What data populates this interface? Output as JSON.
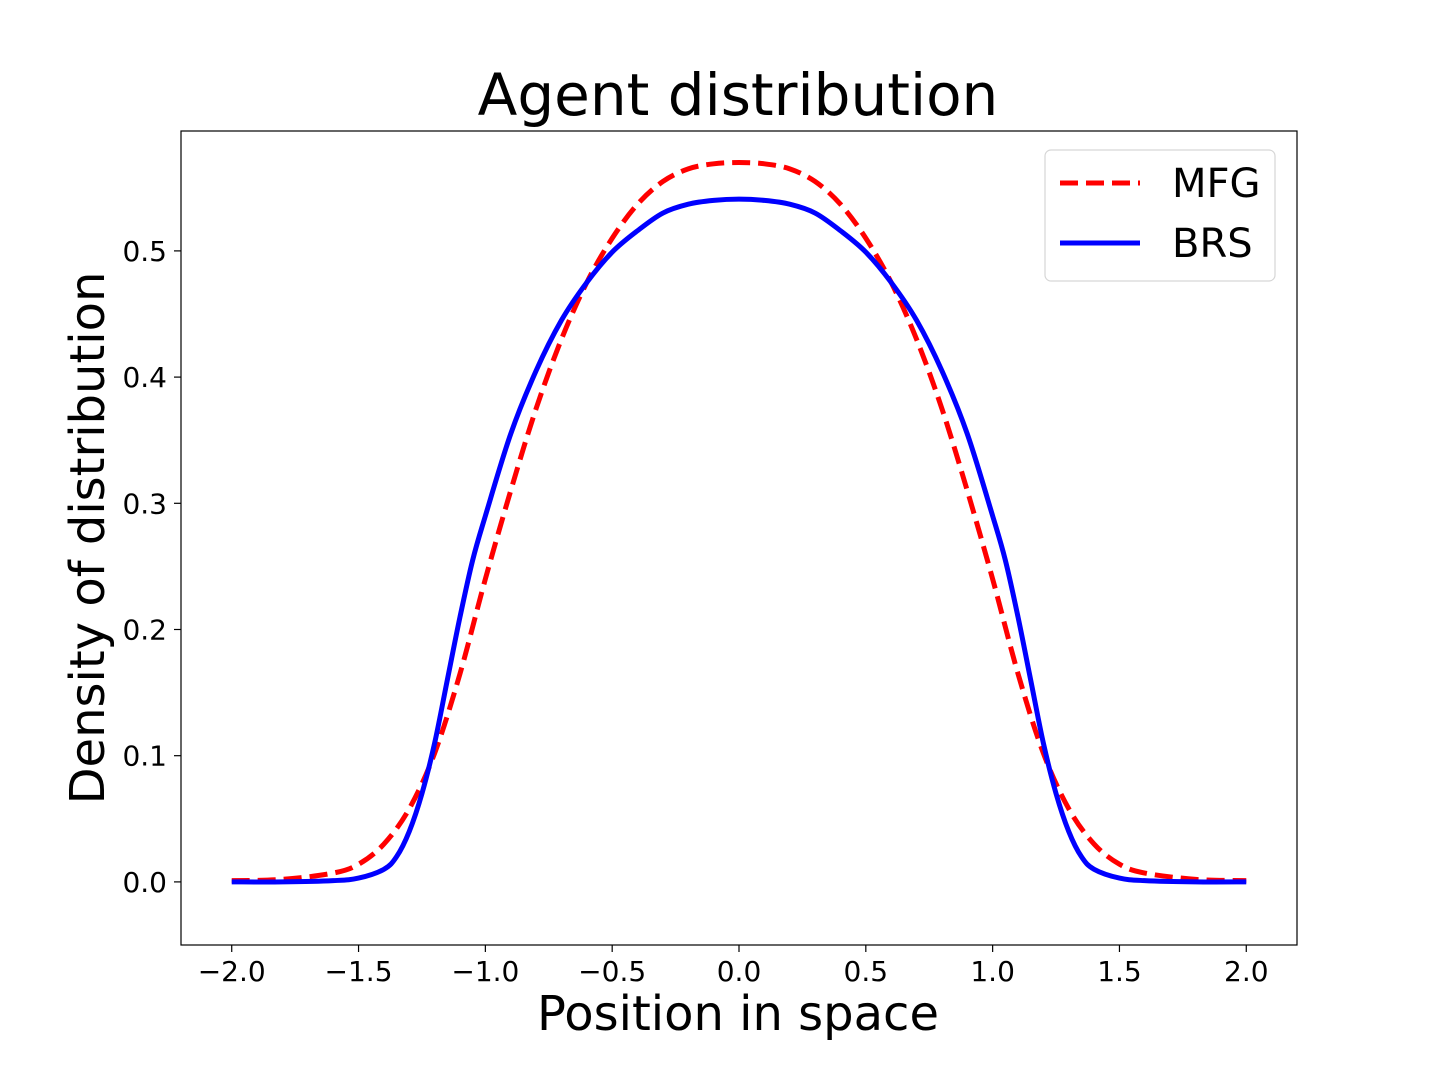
{
  "chart_data": {
    "type": "line",
    "title": "Agent distribution",
    "xlabel": "Position in space",
    "ylabel": "Density of distribution",
    "xlim": [
      -2.2,
      2.2
    ],
    "ylim": [
      -0.05,
      0.595
    ],
    "xticks": [
      -2.0,
      -1.5,
      -1.0,
      -0.5,
      0.0,
      0.5,
      1.0,
      1.5,
      2.0
    ],
    "xtick_labels": [
      "−2.0",
      "−1.5",
      "−1.0",
      "−0.5",
      "0.0",
      "0.5",
      "1.0",
      "1.5",
      "2.0"
    ],
    "yticks": [
      0.0,
      0.1,
      0.2,
      0.3,
      0.4,
      0.5
    ],
    "ytick_labels": [
      "0.0",
      "0.1",
      "0.2",
      "0.3",
      "0.4",
      "0.5"
    ],
    "grid": false,
    "legend_position": "top-right",
    "series": [
      {
        "name": "MFG",
        "color": "#ff0000",
        "style": "dashed",
        "x": [
          -2.0,
          -1.8,
          -1.6,
          -1.5,
          -1.4,
          -1.3,
          -1.2,
          -1.1,
          -1.0,
          -0.9,
          -0.8,
          -0.7,
          -0.6,
          -0.5,
          -0.4,
          -0.3,
          -0.2,
          -0.1,
          0.0,
          0.1,
          0.2,
          0.3,
          0.4,
          0.5,
          0.6,
          0.7,
          0.8,
          0.9,
          1.0,
          1.1,
          1.2,
          1.3,
          1.4,
          1.5,
          1.6,
          1.8,
          2.0
        ],
        "y": [
          0.001,
          0.002,
          0.007,
          0.014,
          0.03,
          0.058,
          0.102,
          0.165,
          0.24,
          0.31,
          0.375,
          0.43,
          0.475,
          0.51,
          0.537,
          0.555,
          0.565,
          0.569,
          0.57,
          0.569,
          0.565,
          0.555,
          0.537,
          0.51,
          0.475,
          0.43,
          0.375,
          0.31,
          0.24,
          0.165,
          0.102,
          0.058,
          0.03,
          0.014,
          0.007,
          0.002,
          0.001
        ]
      },
      {
        "name": "BRS",
        "color": "#0000ff",
        "style": "solid",
        "x": [
          -2.0,
          -1.8,
          -1.6,
          -1.5,
          -1.4,
          -1.35,
          -1.3,
          -1.25,
          -1.2,
          -1.15,
          -1.1,
          -1.05,
          -1.0,
          -0.9,
          -0.8,
          -0.7,
          -0.6,
          -0.5,
          -0.4,
          -0.3,
          -0.2,
          -0.1,
          0.0,
          0.1,
          0.2,
          0.3,
          0.4,
          0.5,
          0.6,
          0.7,
          0.8,
          0.9,
          1.0,
          1.05,
          1.1,
          1.15,
          1.2,
          1.25,
          1.3,
          1.35,
          1.4,
          1.5,
          1.6,
          1.8,
          2.0
        ],
        "y": [
          0.0,
          0.0,
          0.001,
          0.003,
          0.01,
          0.02,
          0.04,
          0.07,
          0.11,
          0.16,
          0.21,
          0.255,
          0.29,
          0.355,
          0.405,
          0.445,
          0.475,
          0.499,
          0.516,
          0.53,
          0.537,
          0.54,
          0.541,
          0.54,
          0.537,
          0.53,
          0.516,
          0.499,
          0.475,
          0.445,
          0.405,
          0.355,
          0.29,
          0.255,
          0.21,
          0.16,
          0.11,
          0.07,
          0.04,
          0.02,
          0.01,
          0.003,
          0.001,
          0.0,
          0.0
        ]
      }
    ]
  }
}
